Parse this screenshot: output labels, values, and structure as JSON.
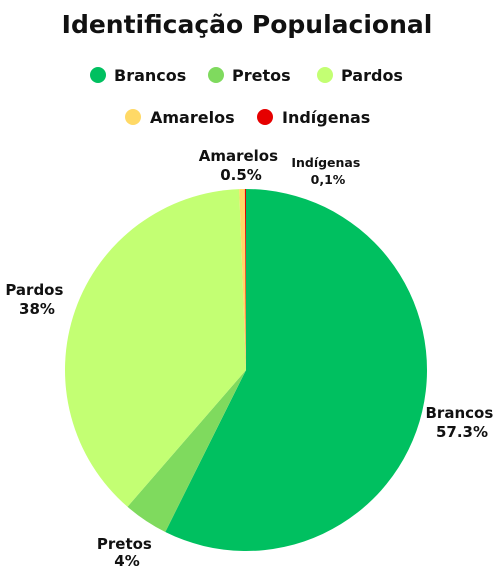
{
  "chart_data": {
    "type": "pie",
    "title": "Identificação Populacional",
    "slices": [
      {
        "name": "Brancos",
        "value": 57.3,
        "label": "57.3%",
        "color": "#00c060"
      },
      {
        "name": "Pretos",
        "value": 4,
        "label": "4%",
        "color": "#7fda5e"
      },
      {
        "name": "Pardos",
        "value": 38,
        "label": "38%",
        "color": "#c3ff73"
      },
      {
        "name": "Amarelos",
        "value": 0.5,
        "label": "0.5%",
        "color": "#ffd966"
      },
      {
        "name": "Indígenas",
        "value": 0.1,
        "label": "0,1%",
        "color": "#e60000"
      }
    ],
    "legend_placement": "top"
  }
}
